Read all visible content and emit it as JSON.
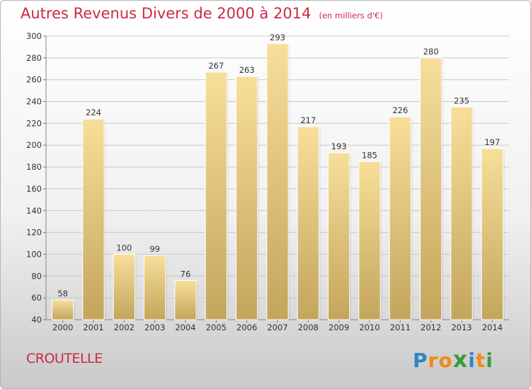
{
  "title": "Autres Revenus Divers de 2000 à 2014",
  "subtitle": "(en milliers d'€)",
  "location": "CROUTELLE",
  "brand": {
    "text": "Proxiti",
    "letters": [
      {
        "char": "P",
        "color": "#2f84c8"
      },
      {
        "char": "r",
        "color": "#f08a1c"
      },
      {
        "char": "o",
        "color": "#f08a1c"
      },
      {
        "char": "x",
        "color": "#3d9a3a"
      },
      {
        "char": "i",
        "color": "#2f84c8"
      },
      {
        "char": "t",
        "color": "#f08a1c"
      },
      {
        "char": "i",
        "color": "#3d9a3a"
      }
    ]
  },
  "colors": {
    "title": "#cc2a45",
    "bar_top": "#f7df9a",
    "bar_bottom": "#c4a55c",
    "grid": "#c8c8c8",
    "axis_text": "#333333"
  },
  "chart_data": {
    "type": "bar",
    "title": "Autres Revenus Divers de 2000 à 2014",
    "subtitle": "(en milliers d'€)",
    "categories": [
      "2000",
      "2001",
      "2002",
      "2003",
      "2004",
      "2005",
      "2006",
      "2007",
      "2008",
      "2009",
      "2010",
      "2011",
      "2012",
      "2013",
      "2014"
    ],
    "values": [
      58,
      224,
      100,
      99,
      76,
      267,
      263,
      293,
      217,
      193,
      185,
      226,
      280,
      235,
      197
    ],
    "ylim": [
      40,
      300
    ],
    "yticks": [
      40,
      60,
      80,
      100,
      120,
      140,
      160,
      180,
      200,
      220,
      240,
      260,
      280,
      300
    ],
    "grid": true,
    "xlabel": "",
    "ylabel": ""
  }
}
